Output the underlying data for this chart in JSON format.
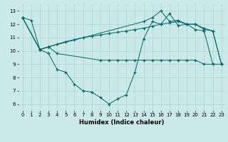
{
  "xlabel": "Humidex (Indice chaleur)",
  "xlim": [
    -0.5,
    23.5
  ],
  "ylim": [
    5.5,
    13.5
  ],
  "xticks": [
    0,
    1,
    2,
    3,
    4,
    5,
    6,
    7,
    8,
    9,
    10,
    11,
    12,
    13,
    14,
    15,
    16,
    17,
    18,
    19,
    20,
    21,
    22,
    23
  ],
  "yticks": [
    6,
    7,
    8,
    9,
    10,
    11,
    12,
    13
  ],
  "bg_color": "#cce9e9",
  "grid_color": "#aad4d4",
  "line_color": "#006666",
  "s1x": [
    0,
    1,
    2,
    3,
    4,
    5,
    6,
    7,
    8,
    9,
    10,
    11,
    12,
    13,
    14,
    15,
    16,
    17,
    18,
    19,
    20,
    21,
    22
  ],
  "s1y": [
    12.5,
    12.3,
    10.1,
    9.8,
    8.6,
    8.4,
    7.5,
    7.0,
    6.9,
    6.5,
    6.0,
    6.4,
    6.7,
    8.4,
    10.9,
    12.2,
    12.0,
    12.8,
    11.9,
    12.0,
    11.6,
    11.5,
    9.0
  ],
  "s2x": [
    0,
    2,
    3,
    4,
    9,
    10,
    11,
    12,
    13,
    14,
    15,
    16,
    17,
    18,
    19,
    20,
    21,
    22,
    23
  ],
  "s2y": [
    12.5,
    10.1,
    10.3,
    9.8,
    9.3,
    9.3,
    9.3,
    9.3,
    9.3,
    9.3,
    9.3,
    9.3,
    9.3,
    9.3,
    9.3,
    9.3,
    9.0,
    9.0,
    9.0
  ],
  "s3x": [
    0,
    2,
    3,
    4,
    5,
    6,
    7,
    8,
    9,
    10,
    11,
    12,
    13,
    14,
    15,
    16,
    17,
    18,
    19,
    20,
    21,
    22,
    23
  ],
  "s3y": [
    12.5,
    10.1,
    10.3,
    10.5,
    10.7,
    10.85,
    11.0,
    11.1,
    11.2,
    11.3,
    11.4,
    11.5,
    11.6,
    11.7,
    11.85,
    12.0,
    12.1,
    12.2,
    12.0,
    12.0,
    11.6,
    11.5,
    9.0
  ],
  "s4x": [
    0,
    2,
    3,
    14,
    15,
    16,
    17,
    18,
    19,
    20,
    21,
    22,
    23
  ],
  "s4y": [
    12.5,
    10.1,
    10.3,
    12.2,
    12.5,
    13.0,
    12.2,
    12.3,
    12.0,
    12.0,
    11.7,
    11.5,
    9.0
  ]
}
